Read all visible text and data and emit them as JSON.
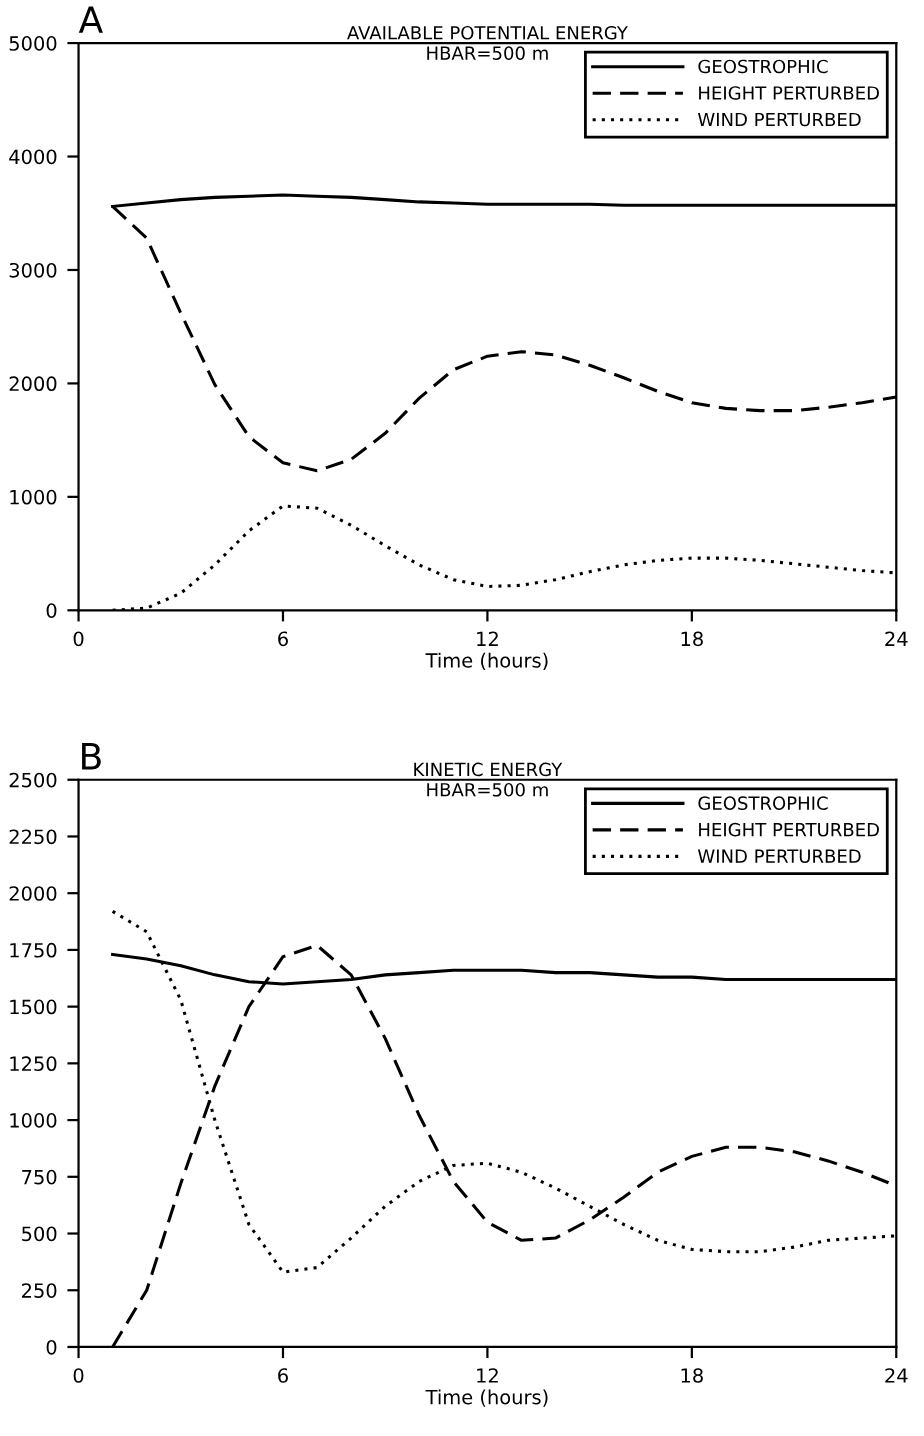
{
  "chart_data": [
    {
      "type": "line",
      "title": "AVAILABLE POTENTIAL ENERGY",
      "subtitle": "HBAR=500 m",
      "xlabel": "Time (hours)",
      "annotations": [
        "A"
      ],
      "x": [
        1,
        2,
        3,
        4,
        5,
        6,
        7,
        8,
        9,
        10,
        11,
        12,
        13,
        14,
        15,
        16,
        17,
        18,
        19,
        20,
        21,
        22,
        23,
        24
      ],
      "series": [
        {
          "name": "GEOSTROPHIC",
          "color": "#000000",
          "line_style": "solid",
          "values": [
            3560,
            3590,
            3620,
            3640,
            3650,
            3660,
            3650,
            3640,
            3620,
            3600,
            3590,
            3580,
            3580,
            3580,
            3580,
            3570,
            3570,
            3570,
            3570,
            3570,
            3570,
            3570,
            3570,
            3570
          ]
        },
        {
          "name": "HEIGHT PERTURBED",
          "color": "#000000",
          "line_style": "dashed",
          "values": [
            3560,
            3280,
            2620,
            1990,
            1530,
            1300,
            1230,
            1330,
            1560,
            1870,
            2120,
            2240,
            2280,
            2250,
            2160,
            2050,
            1930,
            1830,
            1780,
            1760,
            1760,
            1790,
            1830,
            1880
          ]
        },
        {
          "name": "WIND PERTURBED",
          "color": "#000000",
          "line_style": "dotted",
          "values": [
            0,
            20,
            150,
            400,
            700,
            920,
            900,
            750,
            570,
            400,
            270,
            210,
            220,
            270,
            340,
            400,
            440,
            460,
            460,
            440,
            410,
            380,
            350,
            330
          ]
        }
      ],
      "xlim": [
        0,
        24
      ],
      "xticks": [
        0,
        6,
        12,
        18,
        24
      ],
      "ylim": [
        0,
        5000
      ],
      "yticks": [
        0,
        1000,
        2000,
        3000,
        4000,
        5000
      ],
      "grid": false,
      "legend": "top right",
      "marker": "none"
    },
    {
      "type": "line",
      "title": "KINETIC ENERGY",
      "subtitle": "HBAR=500 m",
      "xlabel": "Time (hours)",
      "annotations": [
        "B"
      ],
      "x": [
        1,
        2,
        3,
        4,
        5,
        6,
        7,
        8,
        9,
        10,
        11,
        12,
        13,
        14,
        15,
        16,
        17,
        18,
        19,
        20,
        21,
        22,
        23,
        24
      ],
      "series": [
        {
          "name": "GEOSTROPHIC",
          "color": "#000000",
          "line_style": "solid",
          "values": [
            1730,
            1710,
            1680,
            1640,
            1610,
            1600,
            1610,
            1620,
            1640,
            1650,
            1660,
            1660,
            1660,
            1650,
            1650,
            1640,
            1630,
            1630,
            1620,
            1620,
            1620,
            1620,
            1620,
            1620
          ]
        },
        {
          "name": "HEIGHT PERTURBED",
          "color": "#000000",
          "line_style": "dashed",
          "values": [
            0,
            250,
            720,
            1150,
            1500,
            1720,
            1770,
            1640,
            1360,
            1020,
            730,
            550,
            470,
            480,
            560,
            660,
            770,
            840,
            880,
            880,
            860,
            820,
            770,
            710
          ]
        },
        {
          "name": "WIND PERTURBED",
          "color": "#000000",
          "line_style": "dotted",
          "values": [
            1920,
            1830,
            1530,
            1000,
            540,
            330,
            350,
            480,
            620,
            730,
            800,
            810,
            770,
            700,
            620,
            540,
            470,
            430,
            420,
            420,
            440,
            470,
            480,
            490
          ]
        }
      ],
      "xlim": [
        0,
        24
      ],
      "xticks": [
        0,
        6,
        12,
        18,
        24
      ],
      "ylim": [
        0,
        2500
      ],
      "yticks": [
        0,
        250,
        500,
        750,
        1000,
        1250,
        1500,
        1750,
        2000,
        2250,
        2500
      ],
      "grid": false,
      "legend": "top right",
      "marker": "none"
    }
  ]
}
